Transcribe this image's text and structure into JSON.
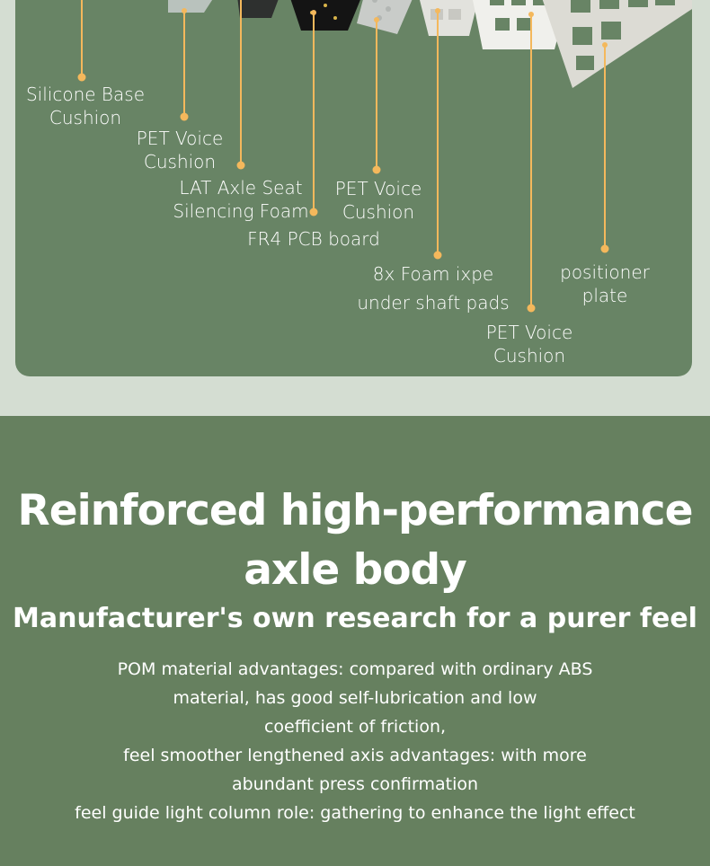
{
  "diagram": {
    "labels": [
      "Silicone Base\nCushion",
      "PET Voice\nCushion",
      "LAT Axle Seat\nSilencing Foam",
      "FR4 PCB board",
      "PET Voice\nCushion",
      "8x Foam ixpe\nunder shaft pads",
      "PET Voice\nCushion",
      "positioner\nplate"
    ],
    "leader_color": "#f4b85c"
  },
  "feature": {
    "title_line1": "Reinforced high-performance",
    "title_line2": "axle body",
    "subtitle": "Manufacturer's own research for a purer feel",
    "description_lines": [
      "POM material advantages: compared with ordinary ABS",
      "material, has good self-lubrication and low",
      "coefficient of friction,",
      "feel smoother lengthened axis advantages: with more",
      "abundant press confirmation",
      "feel guide light column role: gathering to enhance the light effect"
    ]
  }
}
